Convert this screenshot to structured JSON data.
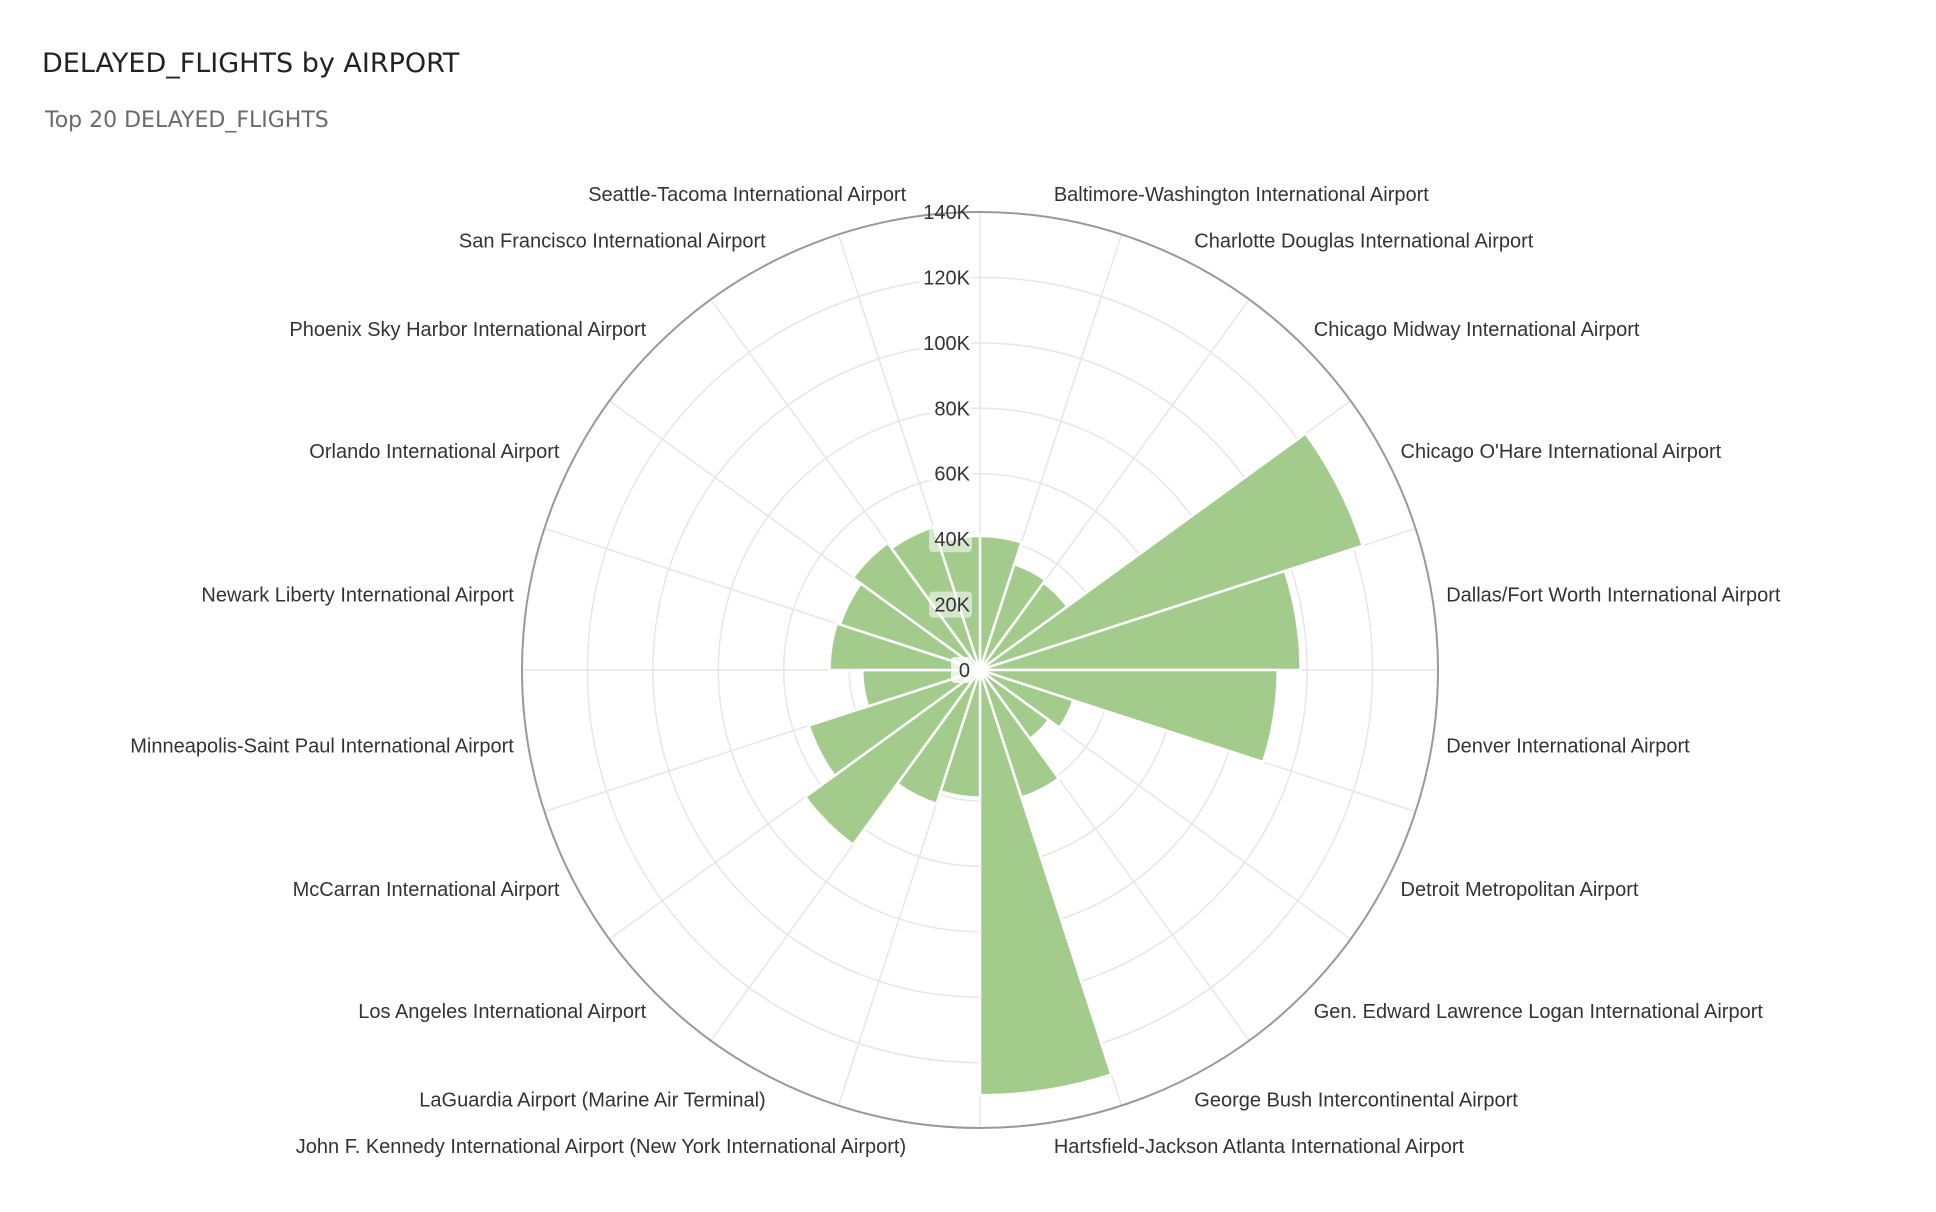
{
  "header": {
    "title": "DELAYED_FLIGHTS by AIRPORT",
    "subtitle": "Top 20 DELAYED_FLIGHTS"
  },
  "colors": {
    "bar": "#a3cb8c",
    "bar_stroke": "#ffffff",
    "grid": "#e6e6e6",
    "outer_ring": "#999999",
    "text": "#333333"
  },
  "chart_data": {
    "type": "bar",
    "polar": true,
    "title": "DELAYED_FLIGHTS by AIRPORT",
    "subtitle": "Top 20 DELAYED_FLIGHTS",
    "rlim": [
      0,
      140000
    ],
    "r_ticks": [
      0,
      20000,
      40000,
      60000,
      80000,
      100000,
      120000,
      140000
    ],
    "r_tick_labels": [
      "0",
      "20K",
      "40K",
      "60K",
      "80K",
      "100K",
      "120K",
      "140K"
    ],
    "grid": true,
    "categories": [
      "Baltimore-Washington International Airport",
      "Charlotte Douglas International Airport",
      "Chicago Midway International Airport",
      "Chicago O'Hare International Airport",
      "Dallas/Fort Worth International Airport",
      "Denver International Airport",
      "Detroit Metropolitan Airport",
      "Gen. Edward Lawrence Logan International Airport",
      "George Bush Intercontinental Airport",
      "Hartsfield-Jackson Atlanta International Airport",
      "John F. Kennedy International Airport (New York International Airport)",
      "LaGuardia Airport (Marine Air Terminal)",
      "Los Angeles International Airport",
      "McCarran International Airport",
      "Minneapolis-Saint Paul International Airport",
      "Newark Liberty International Airport",
      "Orlando International Airport",
      "Phoenix Sky Harbor International Airport",
      "San Francisco International Airport",
      "Seattle-Tacoma International Airport"
    ],
    "values": [
      41000,
      34000,
      33000,
      123000,
      98000,
      91000,
      30000,
      26000,
      41000,
      130000,
      39000,
      43000,
      66000,
      55000,
      36000,
      46000,
      45000,
      48000,
      46000,
      41000
    ]
  }
}
